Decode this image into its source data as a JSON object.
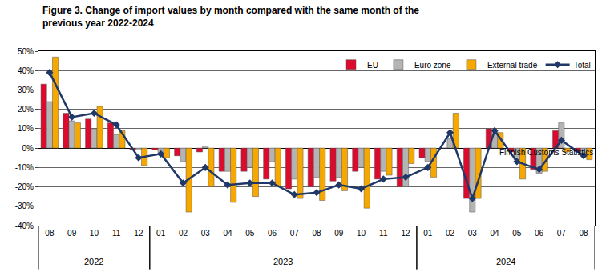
{
  "chart_data": {
    "type": "bar",
    "title": "Figure 3. Change of import values by month compared with the same month of the previous year 2022-2024",
    "source": "Finnish Customs Statistics",
    "categories": [
      "08",
      "09",
      "10",
      "11",
      "12",
      "01",
      "02",
      "03",
      "04",
      "05",
      "06",
      "07",
      "08",
      "09",
      "10",
      "11",
      "12",
      "01",
      "02",
      "03",
      "04",
      "05",
      "06",
      "07",
      "08"
    ],
    "year_groups": [
      {
        "label": "2022",
        "first": 0,
        "last": 4
      },
      {
        "label": "2023",
        "first": 5,
        "last": 16
      },
      {
        "label": "2024",
        "first": 17,
        "last": 24
      }
    ],
    "series": [
      {
        "name": "EU",
        "type": "bar",
        "color": "#dc0a2d",
        "values": [
          33,
          18,
          15,
          13,
          -1,
          -1,
          -4,
          -2,
          -12,
          -12,
          -16,
          -21,
          -20,
          -17,
          -12,
          -16,
          -20,
          -5,
          0,
          -26,
          10,
          -2,
          -11,
          9,
          -2
        ]
      },
      {
        "name": "Euro zone",
        "type": "bar",
        "color": "#b4b4b4",
        "values": [
          24,
          14,
          10,
          7,
          -1,
          -3,
          -7,
          1,
          -12,
          -10,
          -7,
          -16,
          -15,
          -15,
          -10,
          -12,
          -20,
          -7,
          5,
          -33,
          9,
          -6,
          -13,
          13,
          -3
        ]
      },
      {
        "name": "External trade",
        "type": "bar",
        "color": "#f7a800",
        "values": [
          47,
          13,
          21.5,
          9,
          -9,
          -5,
          -33,
          -20,
          -28,
          -25,
          -20,
          -26,
          -27,
          -22,
          -31,
          -14,
          -8,
          -15,
          18,
          -26,
          8,
          -16,
          -12,
          -2,
          -6
        ]
      },
      {
        "name": "Total",
        "type": "line",
        "color": "#1f3868",
        "marker": "diamond",
        "values": [
          39,
          16,
          18,
          12,
          -5,
          -3,
          -18,
          -10,
          -19,
          -18,
          -18,
          -24,
          -23,
          -19,
          -21,
          -16,
          -15,
          -10,
          8,
          -26,
          9,
          -7,
          -11,
          4,
          -4
        ]
      }
    ],
    "ylim": [
      -40,
      50
    ],
    "yticks": [
      {
        "value": -40,
        "label": "-40%"
      },
      {
        "value": -30,
        "label": "-30%"
      },
      {
        "value": -20,
        "label": "-20%"
      },
      {
        "value": -10,
        "label": "-10%"
      },
      {
        "value": 0,
        "label": "0%"
      },
      {
        "value": 10,
        "label": "10%"
      },
      {
        "value": 20,
        "label": "20%"
      },
      {
        "value": 30,
        "label": "30%"
      },
      {
        "value": 40,
        "label": "40%"
      },
      {
        "value": 50,
        "label": "50%"
      }
    ],
    "grid": true,
    "legend": "top-right"
  }
}
